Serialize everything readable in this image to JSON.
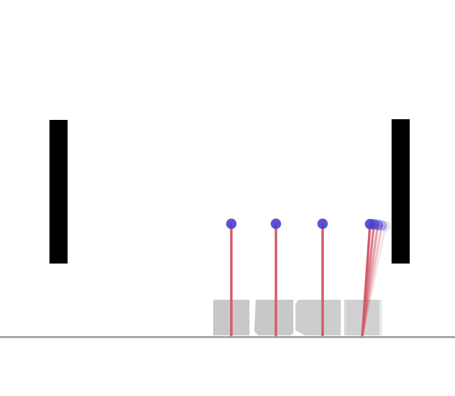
{
  "scene": {
    "background_color": "#ffffff",
    "ground_color": "#a6a6a6",
    "wall_color": "#000000",
    "cart_color": "#c8c8c8",
    "pole_color": "#d45a6a",
    "bob_color": "#4a3fd0",
    "walls": [
      {
        "name": "left-wall"
      },
      {
        "name": "right-wall"
      }
    ],
    "carts": [
      {
        "name": "cart-1",
        "pole_angles_deg": [
          0
        ]
      },
      {
        "name": "cart-2",
        "pole_angles_deg": [
          0
        ]
      },
      {
        "name": "cart-3",
        "pole_angles_deg": [
          0
        ]
      },
      {
        "name": "cart-4",
        "pole_angles_deg": [
          4,
          6,
          8,
          10,
          12
        ],
        "motion_trail": true
      }
    ]
  }
}
